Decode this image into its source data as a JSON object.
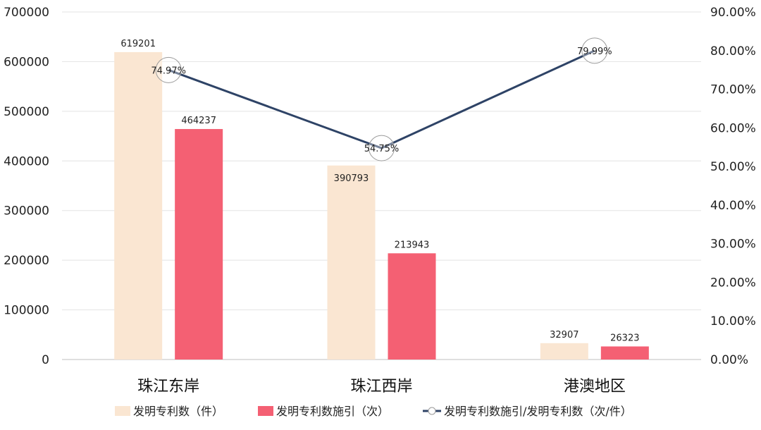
{
  "chart_data": {
    "type": "bar",
    "categories": [
      "珠江东岸",
      "珠江西岸",
      "港澳地区"
    ],
    "series": [
      {
        "name": "发明专利数（件）",
        "type": "bar",
        "axis": "left",
        "color": "#FAE6D2",
        "values": [
          619201,
          390793,
          32907
        ],
        "labels": [
          "619201",
          "390793",
          "32907"
        ]
      },
      {
        "name": "发明专利数施引（次）",
        "type": "bar",
        "axis": "left",
        "color": "#F46073",
        "values": [
          464237,
          213943,
          26323
        ],
        "labels": [
          "464237",
          "213943",
          "26323"
        ]
      },
      {
        "name": "发明专利数施引/发明专利数（次/件）",
        "type": "line",
        "axis": "right",
        "color": "#2E4366",
        "values": [
          74.97,
          54.75,
          79.99
        ],
        "labels": [
          "74.97%",
          "54.75%",
          "79.99%"
        ]
      }
    ],
    "left_axis": {
      "min": 0,
      "max": 700000,
      "ticks": [
        "0",
        "100000",
        "200000",
        "300000",
        "400000",
        "500000",
        "600000",
        "700000"
      ]
    },
    "right_axis": {
      "min": 0,
      "max": 90,
      "ticks": [
        "0.00%",
        "10.00%",
        "20.00%",
        "30.00%",
        "40.00%",
        "50.00%",
        "60.00%",
        "70.00%",
        "80.00%",
        "90.00%"
      ]
    },
    "grid": true,
    "legend_position": "bottom",
    "title": "",
    "xlabel": "",
    "ylabel": ""
  }
}
